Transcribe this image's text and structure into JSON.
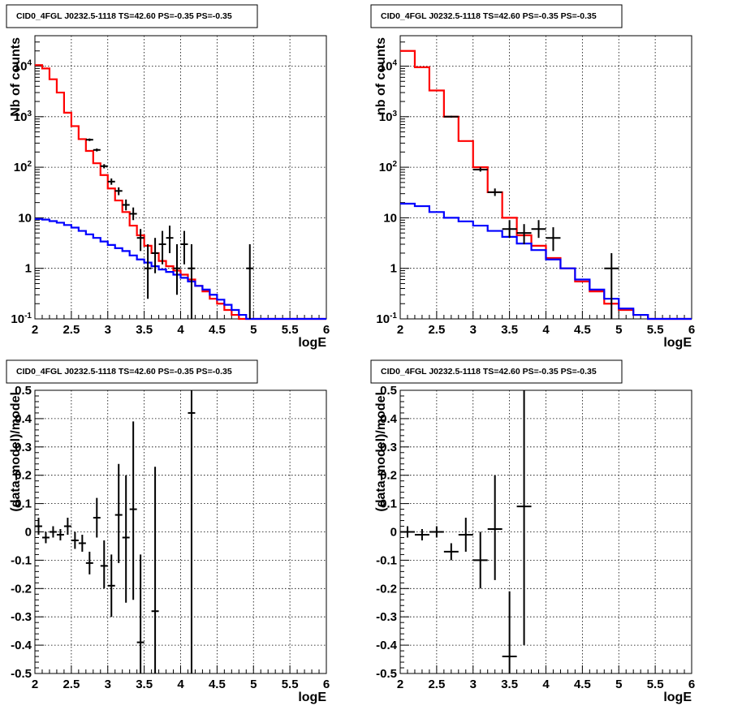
{
  "chart_data": [
    {
      "type": "step-histogram",
      "title": "CID0_4FGL J0232.5-1118 TS=42.60 PS=-0.35 PS=-0.35",
      "xlabel": "logE",
      "ylabel": "Nb of counts",
      "xlim": [
        2,
        6
      ],
      "ylim": [
        0.1,
        40000
      ],
      "yscale": "log",
      "grid": true,
      "x_ticks": [
        "2",
        "2.5",
        "3",
        "3.5",
        "4",
        "4.5",
        "5",
        "5.5",
        "6"
      ],
      "y_ticks": [
        "10^-1",
        "1",
        "10",
        "10^2",
        "10^3",
        "10^4"
      ],
      "bin_edges": [
        2.0,
        2.1,
        2.2,
        2.3,
        2.4,
        2.5,
        2.6,
        2.7,
        2.8,
        2.9,
        3.0,
        3.1,
        3.2,
        3.3,
        3.4,
        3.5,
        3.6,
        3.7,
        3.8,
        3.9,
        4.0,
        4.1,
        4.2,
        4.3,
        4.4,
        4.5,
        4.6,
        4.7,
        4.8,
        4.9,
        5.0,
        5.1,
        5.2,
        5.3,
        5.4,
        5.5,
        5.6,
        5.7,
        5.8,
        5.9,
        6.0
      ],
      "series": [
        {
          "color": "#ff0000",
          "style": "step",
          "values": [
            10500,
            9000,
            5500,
            3000,
            1200,
            650,
            360,
            210,
            120,
            70,
            38,
            22,
            13,
            7,
            4.5,
            2.8,
            2.0,
            1.4,
            1.1,
            0.9,
            0.75,
            0.6,
            0.45,
            0.35,
            0.25,
            0.2,
            0.15,
            0.12,
            0.1,
            0.1,
            0.1,
            0.1,
            0.1,
            0.1,
            0.1,
            0.1,
            0.1,
            0.1,
            0.1,
            0.1
          ]
        },
        {
          "color": "#0000ff",
          "style": "step",
          "values": [
            9.5,
            9.2,
            8.6,
            8.0,
            7.2,
            6.4,
            5.5,
            4.7,
            4.0,
            3.4,
            2.9,
            2.5,
            2.2,
            1.8,
            1.5,
            1.3,
            1.1,
            0.95,
            0.85,
            0.75,
            0.65,
            0.55,
            0.45,
            0.38,
            0.3,
            0.24,
            0.19,
            0.15,
            0.12,
            0.1,
            0.1,
            0.1,
            0.1,
            0.1,
            0.1,
            0.1,
            0.1,
            0.1,
            0.1,
            0.1
          ]
        }
      ],
      "points": [
        {
          "x": 3.05,
          "y": 52,
          "xerr": 0.05,
          "ylo": 45,
          "yhi": 60
        },
        {
          "x": 2.95,
          "y": 105,
          "xerr": 0.05,
          "ylo": 95,
          "yhi": 115
        },
        {
          "x": 2.85,
          "y": 220,
          "xerr": 0.05,
          "ylo": 205,
          "yhi": 235
        },
        {
          "x": 2.75,
          "y": 350,
          "xerr": 0.05,
          "ylo": 330,
          "yhi": 370
        },
        {
          "x": 3.15,
          "y": 34,
          "xerr": 0.05,
          "ylo": 28,
          "yhi": 40
        },
        {
          "x": 3.25,
          "y": 18,
          "xerr": 0.05,
          "ylo": 14,
          "yhi": 23
        },
        {
          "x": 3.35,
          "y": 12,
          "xerr": 0.05,
          "ylo": 9,
          "yhi": 16
        },
        {
          "x": 3.45,
          "y": 4,
          "xerr": 0.05,
          "ylo": 2.2,
          "yhi": 6
        },
        {
          "x": 3.55,
          "y": 1,
          "xerr": 0.05,
          "ylo": 0.25,
          "yhi": 3
        },
        {
          "x": 3.65,
          "y": 2,
          "xerr": 0.05,
          "ylo": 0.8,
          "yhi": 4
        },
        {
          "x": 3.75,
          "y": 3,
          "xerr": 0.05,
          "ylo": 1.2,
          "yhi": 5.5
        },
        {
          "x": 3.85,
          "y": 4,
          "xerr": 0.05,
          "ylo": 2.0,
          "yhi": 7
        },
        {
          "x": 3.95,
          "y": 1,
          "xerr": 0.05,
          "ylo": 0.3,
          "yhi": 3
        },
        {
          "x": 4.05,
          "y": 3,
          "xerr": 0.05,
          "ylo": 1.2,
          "yhi": 5.5
        },
        {
          "x": 4.15,
          "y": 1,
          "xerr": 0.05,
          "ylo": 0.1,
          "yhi": 3
        },
        {
          "x": 4.95,
          "y": 1,
          "xerr": 0.05,
          "ylo": 0.1,
          "yhi": 3
        }
      ]
    },
    {
      "type": "step-histogram",
      "title": "CID0_4FGL J0232.5-1118 TS=42.60 PS=-0.35 PS=-0.35",
      "xlabel": "logE",
      "ylabel": "nb of counts",
      "xlim": [
        2,
        6
      ],
      "ylim": [
        0.1,
        40000
      ],
      "yscale": "log",
      "grid": true,
      "x_ticks": [
        "2",
        "2.5",
        "3",
        "3.5",
        "4",
        "4.5",
        "5",
        "5.5",
        "6"
      ],
      "y_ticks": [
        "10^-1",
        "1",
        "10",
        "10^2",
        "10^3",
        "10^4"
      ],
      "bin_edges": [
        2.0,
        2.2,
        2.4,
        2.6,
        2.8,
        3.0,
        3.2,
        3.4,
        3.6,
        3.8,
        4.0,
        4.2,
        4.4,
        4.6,
        4.8,
        5.0,
        5.2,
        5.4,
        5.6,
        5.8,
        6.0
      ],
      "series": [
        {
          "color": "#ff0000",
          "style": "step",
          "values": [
            20000,
            9500,
            3300,
            1000,
            330,
            100,
            32,
            10,
            4.5,
            2.8,
            1.6,
            1.0,
            0.55,
            0.35,
            0.2,
            0.15,
            0.12,
            0.1,
            0.1,
            0.1
          ]
        },
        {
          "color": "#0000ff",
          "style": "step",
          "values": [
            19,
            17,
            13,
            10,
            8.5,
            7.0,
            5.5,
            4.2,
            3.1,
            2.3,
            1.5,
            1.0,
            0.6,
            0.38,
            0.25,
            0.16,
            0.12,
            0.1,
            0.1,
            0.1
          ]
        }
      ],
      "points": [
        {
          "x": 2.7,
          "y": 1000,
          "xerr": 0.1,
          "ylo": 960,
          "yhi": 1040
        },
        {
          "x": 3.1,
          "y": 90,
          "xerr": 0.1,
          "ylo": 82,
          "yhi": 100
        },
        {
          "x": 3.3,
          "y": 32,
          "xerr": 0.1,
          "ylo": 27,
          "yhi": 38
        },
        {
          "x": 3.5,
          "y": 6,
          "xerr": 0.1,
          "ylo": 4,
          "yhi": 9
        },
        {
          "x": 3.7,
          "y": 5,
          "xerr": 0.1,
          "ylo": 3,
          "yhi": 7.5
        },
        {
          "x": 3.9,
          "y": 6,
          "xerr": 0.1,
          "ylo": 4,
          "yhi": 9
        },
        {
          "x": 4.1,
          "y": 4,
          "xerr": 0.1,
          "ylo": 2.2,
          "yhi": 6.5
        },
        {
          "x": 4.9,
          "y": 1,
          "xerr": 0.1,
          "ylo": 0.1,
          "yhi": 2
        }
      ]
    },
    {
      "type": "scatter",
      "title": "CID0_4FGL J0232.5-1118 TS=42.60 PS=-0.35 PS=-0.35",
      "xlabel": "logE",
      "ylabel": "(data-model)/model",
      "xlim": [
        2,
        6
      ],
      "ylim": [
        -0.5,
        0.5
      ],
      "grid": true,
      "x_ticks": [
        "2",
        "2.5",
        "3",
        "3.5",
        "4",
        "4.5",
        "5",
        "5.5",
        "6"
      ],
      "y_ticks": [
        "-0.5",
        "-0.4",
        "-0.3",
        "-0.2",
        "-0.1",
        "0",
        "0.1",
        "0.2",
        "0.3",
        "0.4",
        "0.5"
      ],
      "points": [
        {
          "x": 2.05,
          "y": 0.02,
          "xerr": 0.05,
          "ylo": -0.01,
          "yhi": 0.05
        },
        {
          "x": 2.15,
          "y": -0.02,
          "xerr": 0.05,
          "ylo": -0.04,
          "yhi": 0.0
        },
        {
          "x": 2.25,
          "y": 0.0,
          "xerr": 0.05,
          "ylo": -0.02,
          "yhi": 0.02
        },
        {
          "x": 2.35,
          "y": -0.01,
          "xerr": 0.05,
          "ylo": -0.03,
          "yhi": 0.01
        },
        {
          "x": 2.45,
          "y": 0.02,
          "xerr": 0.05,
          "ylo": -0.01,
          "yhi": 0.05
        },
        {
          "x": 2.55,
          "y": -0.03,
          "xerr": 0.05,
          "ylo": -0.06,
          "yhi": 0.0
        },
        {
          "x": 2.65,
          "y": -0.04,
          "xerr": 0.05,
          "ylo": -0.07,
          "yhi": -0.01
        },
        {
          "x": 2.75,
          "y": -0.11,
          "xerr": 0.05,
          "ylo": -0.15,
          "yhi": -0.07
        },
        {
          "x": 2.85,
          "y": 0.05,
          "xerr": 0.05,
          "ylo": -0.02,
          "yhi": 0.12
        },
        {
          "x": 2.95,
          "y": -0.12,
          "xerr": 0.05,
          "ylo": -0.2,
          "yhi": -0.03
        },
        {
          "x": 3.05,
          "y": -0.19,
          "xerr": 0.05,
          "ylo": -0.3,
          "yhi": -0.08
        },
        {
          "x": 3.15,
          "y": 0.06,
          "xerr": 0.05,
          "ylo": -0.11,
          "yhi": 0.24
        },
        {
          "x": 3.25,
          "y": -0.02,
          "xerr": 0.05,
          "ylo": -0.25,
          "yhi": 0.2
        },
        {
          "x": 3.35,
          "y": 0.08,
          "xerr": 0.05,
          "ylo": -0.24,
          "yhi": 0.39
        },
        {
          "x": 3.45,
          "y": -0.39,
          "xerr": 0.05,
          "ylo": -0.5,
          "yhi": -0.08
        },
        {
          "x": 3.65,
          "y": -0.28,
          "xerr": 0.05,
          "ylo": -0.5,
          "yhi": 0.23
        },
        {
          "x": 4.15,
          "y": 0.42,
          "xerr": 0.05,
          "ylo": -0.5,
          "yhi": 0.5
        }
      ]
    },
    {
      "type": "scatter",
      "title": "CID0_4FGL J0232.5-1118 TS=42.60 PS=-0.35 PS=-0.35",
      "xlabel": "logE",
      "ylabel": "(data-model)/model",
      "xlim": [
        2,
        6
      ],
      "ylim": [
        -0.5,
        0.5
      ],
      "grid": true,
      "x_ticks": [
        "2",
        "2.5",
        "3",
        "3.5",
        "4",
        "4.5",
        "5",
        "5.5",
        "6"
      ],
      "y_ticks": [
        "-0.5",
        "-0.4",
        "-0.3",
        "-0.2",
        "-0.1",
        "0",
        "0.1",
        "0.2",
        "0.3",
        "0.4",
        "0.5"
      ],
      "points": [
        {
          "x": 2.1,
          "y": 0.0,
          "xerr": 0.1,
          "ylo": -0.02,
          "yhi": 0.02
        },
        {
          "x": 2.3,
          "y": -0.01,
          "xerr": 0.1,
          "ylo": -0.03,
          "yhi": 0.01
        },
        {
          "x": 2.5,
          "y": 0.0,
          "xerr": 0.1,
          "ylo": -0.02,
          "yhi": 0.02
        },
        {
          "x": 2.7,
          "y": -0.07,
          "xerr": 0.1,
          "ylo": -0.1,
          "yhi": -0.04
        },
        {
          "x": 2.9,
          "y": -0.01,
          "xerr": 0.1,
          "ylo": -0.07,
          "yhi": 0.05
        },
        {
          "x": 3.1,
          "y": -0.1,
          "xerr": 0.1,
          "ylo": -0.2,
          "yhi": 0.0
        },
        {
          "x": 3.3,
          "y": 0.01,
          "xerr": 0.1,
          "ylo": -0.17,
          "yhi": 0.2
        },
        {
          "x": 3.5,
          "y": -0.44,
          "xerr": 0.1,
          "ylo": -0.5,
          "yhi": -0.21
        },
        {
          "x": 3.7,
          "y": 0.09,
          "xerr": 0.1,
          "ylo": -0.4,
          "yhi": 0.5
        }
      ]
    }
  ]
}
